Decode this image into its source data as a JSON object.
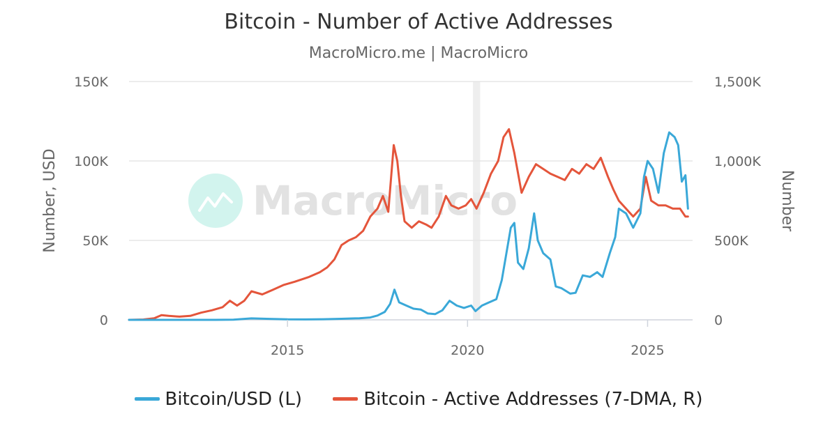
{
  "chart_data": {
    "type": "line",
    "title": "Bitcoin - Number of Active Addresses",
    "subtitle": "MacroMicro.me | MacroMicro",
    "watermark": "MacroMicro",
    "xlim": [
      2010.6,
      2026.25
    ],
    "x_ticks": [
      2015,
      2020,
      2025
    ],
    "x_tick_labels": [
      "2015",
      "2020",
      "2025"
    ],
    "recession_band": [
      2020.15,
      2020.35
    ],
    "y_left": {
      "label": "Number, USD",
      "range": [
        0,
        150000
      ],
      "ticks": [
        0,
        50000,
        100000,
        150000
      ],
      "tick_labels": [
        "0",
        "50K",
        "100K",
        "150K"
      ]
    },
    "y_right": {
      "label": "Number",
      "range": [
        0,
        1500000
      ],
      "ticks": [
        0,
        500000,
        1000000,
        1500000
      ],
      "tick_labels": [
        "0",
        "500K",
        "1,000K",
        "1,500K"
      ]
    },
    "series": [
      {
        "name": "Bitcoin/USD (L)",
        "axis": "left",
        "color": "#3aa8d8",
        "points": [
          [
            2010.6,
            0
          ],
          [
            2011.5,
            15
          ],
          [
            2012.5,
            10
          ],
          [
            2013.0,
            20
          ],
          [
            2013.5,
            100
          ],
          [
            2013.9,
            800
          ],
          [
            2014.0,
            900
          ],
          [
            2014.5,
            600
          ],
          [
            2015.0,
            300
          ],
          [
            2015.5,
            250
          ],
          [
            2016.0,
            400
          ],
          [
            2016.5,
            650
          ],
          [
            2017.0,
            1000
          ],
          [
            2017.3,
            1500
          ],
          [
            2017.5,
            2700
          ],
          [
            2017.7,
            5000
          ],
          [
            2017.85,
            10000
          ],
          [
            2017.97,
            19000
          ],
          [
            2018.1,
            11000
          ],
          [
            2018.3,
            9000
          ],
          [
            2018.5,
            7000
          ],
          [
            2018.7,
            6500
          ],
          [
            2018.9,
            4000
          ],
          [
            2019.1,
            3600
          ],
          [
            2019.3,
            6000
          ],
          [
            2019.5,
            12000
          ],
          [
            2019.7,
            9000
          ],
          [
            2019.9,
            7500
          ],
          [
            2020.1,
            9000
          ],
          [
            2020.22,
            5500
          ],
          [
            2020.4,
            9000
          ],
          [
            2020.6,
            11000
          ],
          [
            2020.8,
            13000
          ],
          [
            2020.95,
            25000
          ],
          [
            2021.05,
            38000
          ],
          [
            2021.2,
            58000
          ],
          [
            2021.3,
            61000
          ],
          [
            2021.4,
            36000
          ],
          [
            2021.55,
            32000
          ],
          [
            2021.7,
            45000
          ],
          [
            2021.85,
            67000
          ],
          [
            2021.95,
            50000
          ],
          [
            2022.1,
            42000
          ],
          [
            2022.3,
            38000
          ],
          [
            2022.45,
            21000
          ],
          [
            2022.6,
            20000
          ],
          [
            2022.85,
            16500
          ],
          [
            2023.0,
            17000
          ],
          [
            2023.2,
            28000
          ],
          [
            2023.4,
            27000
          ],
          [
            2023.6,
            30000
          ],
          [
            2023.75,
            27000
          ],
          [
            2023.95,
            42000
          ],
          [
            2024.1,
            52000
          ],
          [
            2024.2,
            70000
          ],
          [
            2024.4,
            67000
          ],
          [
            2024.6,
            58000
          ],
          [
            2024.8,
            67000
          ],
          [
            2024.9,
            90000
          ],
          [
            2025.0,
            100000
          ],
          [
            2025.15,
            95000
          ],
          [
            2025.3,
            80000
          ],
          [
            2025.45,
            105000
          ],
          [
            2025.6,
            118000
          ],
          [
            2025.75,
            115000
          ],
          [
            2025.85,
            110000
          ],
          [
            2025.95,
            87000
          ],
          [
            2026.05,
            91000
          ],
          [
            2026.12,
            70000
          ]
        ]
      },
      {
        "name": "Bitcoin - Active Addresses (7-DMA, R)",
        "axis": "right",
        "color": "#e4553b",
        "points": [
          [
            2010.6,
            0
          ],
          [
            2011.0,
            2000
          ],
          [
            2011.3,
            10000
          ],
          [
            2011.5,
            30000
          ],
          [
            2011.7,
            25000
          ],
          [
            2012.0,
            20000
          ],
          [
            2012.3,
            25000
          ],
          [
            2012.6,
            45000
          ],
          [
            2012.9,
            60000
          ],
          [
            2013.2,
            80000
          ],
          [
            2013.4,
            120000
          ],
          [
            2013.6,
            90000
          ],
          [
            2013.8,
            120000
          ],
          [
            2014.0,
            180000
          ],
          [
            2014.3,
            160000
          ],
          [
            2014.6,
            190000
          ],
          [
            2014.9,
            220000
          ],
          [
            2015.2,
            240000
          ],
          [
            2015.6,
            270000
          ],
          [
            2015.9,
            300000
          ],
          [
            2016.1,
            330000
          ],
          [
            2016.3,
            380000
          ],
          [
            2016.5,
            470000
          ],
          [
            2016.7,
            500000
          ],
          [
            2016.9,
            520000
          ],
          [
            2017.1,
            560000
          ],
          [
            2017.3,
            650000
          ],
          [
            2017.5,
            700000
          ],
          [
            2017.65,
            780000
          ],
          [
            2017.8,
            680000
          ],
          [
            2017.95,
            1100000
          ],
          [
            2018.05,
            1000000
          ],
          [
            2018.15,
            780000
          ],
          [
            2018.25,
            620000
          ],
          [
            2018.45,
            580000
          ],
          [
            2018.65,
            620000
          ],
          [
            2018.85,
            600000
          ],
          [
            2019.0,
            580000
          ],
          [
            2019.2,
            650000
          ],
          [
            2019.4,
            780000
          ],
          [
            2019.55,
            720000
          ],
          [
            2019.75,
            700000
          ],
          [
            2019.95,
            720000
          ],
          [
            2020.1,
            760000
          ],
          [
            2020.25,
            700000
          ],
          [
            2020.45,
            800000
          ],
          [
            2020.65,
            920000
          ],
          [
            2020.85,
            1000000
          ],
          [
            2021.0,
            1150000
          ],
          [
            2021.15,
            1200000
          ],
          [
            2021.3,
            1050000
          ],
          [
            2021.5,
            800000
          ],
          [
            2021.7,
            900000
          ],
          [
            2021.9,
            980000
          ],
          [
            2022.1,
            950000
          ],
          [
            2022.3,
            920000
          ],
          [
            2022.5,
            900000
          ],
          [
            2022.7,
            880000
          ],
          [
            2022.9,
            950000
          ],
          [
            2023.1,
            920000
          ],
          [
            2023.3,
            980000
          ],
          [
            2023.5,
            950000
          ],
          [
            2023.7,
            1020000
          ],
          [
            2023.9,
            900000
          ],
          [
            2024.05,
            820000
          ],
          [
            2024.2,
            750000
          ],
          [
            2024.4,
            700000
          ],
          [
            2024.6,
            650000
          ],
          [
            2024.8,
            700000
          ],
          [
            2024.95,
            900000
          ],
          [
            2025.1,
            750000
          ],
          [
            2025.3,
            720000
          ],
          [
            2025.5,
            720000
          ],
          [
            2025.7,
            700000
          ],
          [
            2025.9,
            700000
          ],
          [
            2026.05,
            650000
          ],
          [
            2026.12,
            650000
          ]
        ]
      }
    ]
  }
}
